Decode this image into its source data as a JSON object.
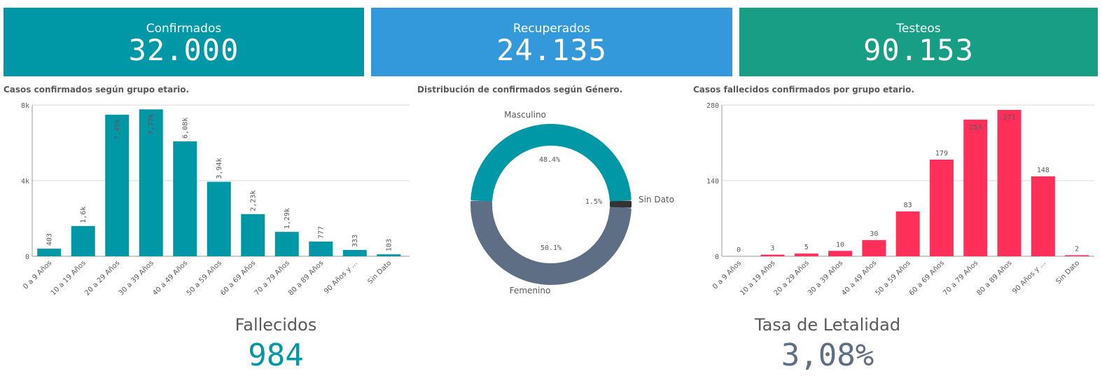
{
  "kpis": [
    {
      "label": "Confirmados",
      "value": "32.000",
      "color": "#0097a7"
    },
    {
      "label": "Recuperados",
      "value": "24.135",
      "color": "#3399db"
    },
    {
      "label": "Testeos",
      "value": "90.153",
      "color": "#179e84"
    }
  ],
  "chart_data": [
    {
      "type": "bar",
      "title": "Casos confirmados según grupo etario.",
      "categories": [
        "0 a 9 Años",
        "10 a 19 Años",
        "20 a 29 Años",
        "30 a 39 Años",
        "40 a 49 Años",
        "50 a 59 Años",
        "60 a 69 Años",
        "70 a 79 Años",
        "80 a 89 Años",
        "90 Años y ...",
        "Sin Dato"
      ],
      "values": [
        403,
        1600,
        7490,
        7770,
        6080,
        3940,
        2230,
        1290,
        777,
        333,
        103
      ],
      "data_labels": [
        "403",
        "1,6k",
        "7,49k",
        "7,77k",
        "6,08k",
        "3,94k",
        "2,23k",
        "1,29k",
        "777",
        "333",
        "103"
      ],
      "yticks": [
        "0",
        "4k",
        "8k"
      ],
      "ylim": [
        0,
        8000
      ],
      "color": "#0097a7",
      "grid": true
    },
    {
      "type": "pie",
      "title": "Distribución de confirmados según Género.",
      "categories": [
        "Masculino",
        "Sin Dato",
        "Femenino"
      ],
      "values": [
        48.4,
        1.5,
        50.1
      ],
      "data_labels": [
        "48.4%",
        "1.5%",
        "50.1%"
      ],
      "colors": [
        "#0097a7",
        "#333333",
        "#5e6e85"
      ]
    },
    {
      "type": "bar",
      "title": "Casos fallecidos confirmados por grupo etario.",
      "categories": [
        "0 a 9 Años",
        "10 a 19 Años",
        "20 a 29 Años",
        "30 a 39 Años",
        "40 a 49 Años",
        "50 a 59 Años",
        "60 a 69 Años",
        "70 a 79 Años",
        "80 a 89 Años",
        "90 Años y ...",
        "Sin Dato"
      ],
      "values": [
        0,
        3,
        5,
        10,
        30,
        83,
        179,
        253,
        271,
        148,
        2
      ],
      "data_labels": [
        "0",
        "3",
        "5",
        "10",
        "30",
        "83",
        "179",
        "253",
        "271",
        "148",
        "2"
      ],
      "yticks": [
        "0",
        "140",
        "280"
      ],
      "ylim": [
        0,
        280
      ],
      "color": "#ff2f5a",
      "grid": true
    }
  ],
  "bottom": [
    {
      "label": "Fallecidos",
      "value": "984",
      "color": "#0097a7"
    },
    {
      "label": "Tasa de Letalidad",
      "value": "3,08%",
      "color": "#5e6e85"
    }
  ]
}
